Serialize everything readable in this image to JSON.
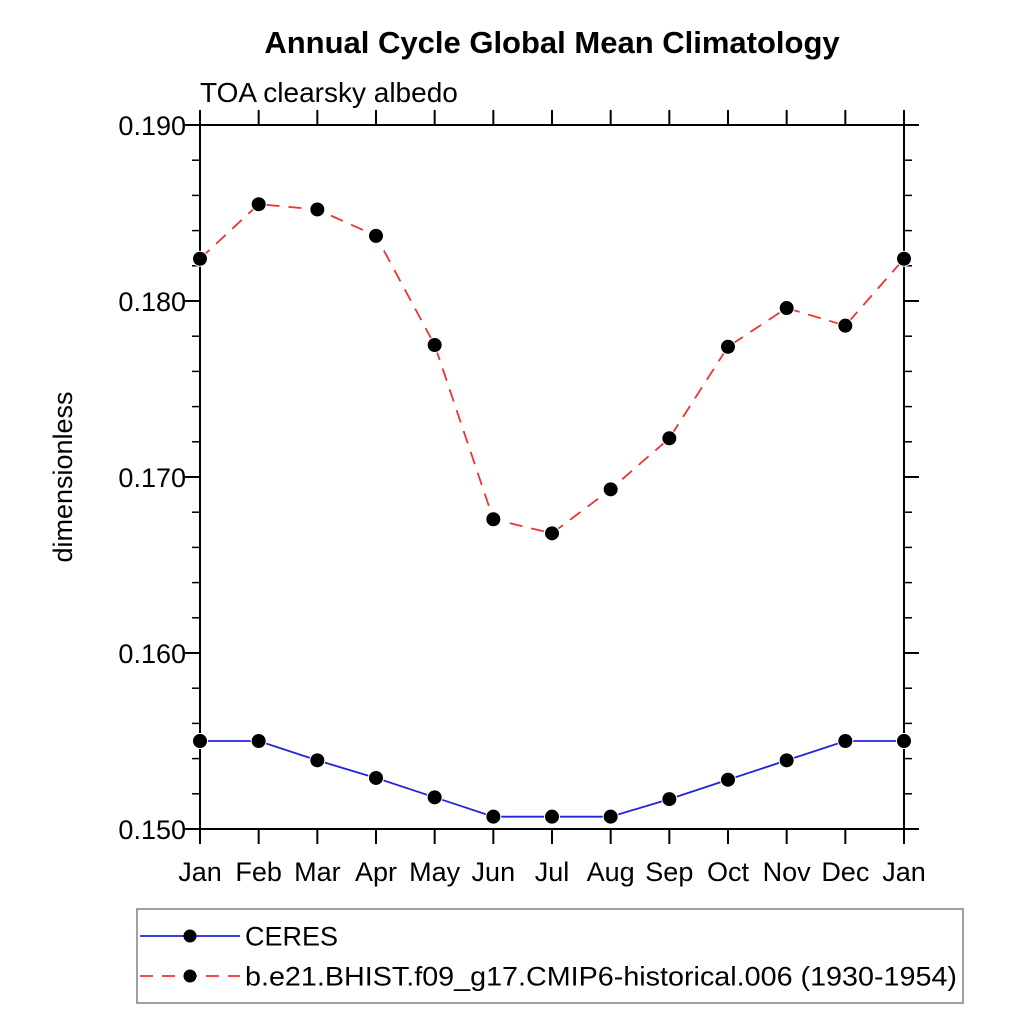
{
  "page": {
    "background": "#ffffff"
  },
  "chart_data": {
    "type": "line",
    "title": "Annual Cycle Global Mean Climatology",
    "subtitle": "TOA clearsky albedo",
    "ylabel": "dimensionless",
    "xlabel": "",
    "categories": [
      "Jan",
      "Feb",
      "Mar",
      "Apr",
      "May",
      "Jun",
      "Jul",
      "Aug",
      "Sep",
      "Oct",
      "Nov",
      "Dec",
      "Jan"
    ],
    "ylim": [
      0.15,
      0.19
    ],
    "ytick_major_interval": 0.01,
    "ytick_minor_interval": 0.002,
    "ytick_labels": [
      "0.150",
      "0.160",
      "0.170",
      "0.180",
      "0.190"
    ],
    "grid": false,
    "tick_direction": "out",
    "marker": {
      "shape": "filled-circle",
      "color": "#000000"
    },
    "series": [
      {
        "name": "CERES",
        "color": "#2222dd",
        "style": "solid",
        "values": [
          0.155,
          0.155,
          0.1539,
          0.1529,
          0.1518,
          0.1507,
          0.1507,
          0.1507,
          0.1517,
          0.1528,
          0.1539,
          0.155,
          0.155
        ]
      },
      {
        "name": "b.e21.BHIST.f09_g17.CMIP6-historical.006 (1930-1954)",
        "color": "#ee3333",
        "style": "dashed",
        "values": [
          0.1824,
          0.1855,
          0.1852,
          0.1837,
          0.1775,
          0.1676,
          0.1668,
          0.1693,
          0.1722,
          0.1774,
          0.1796,
          0.1786,
          0.1824
        ]
      }
    ],
    "legend": {
      "position": "bottom-left",
      "border_color": "#808080"
    }
  }
}
